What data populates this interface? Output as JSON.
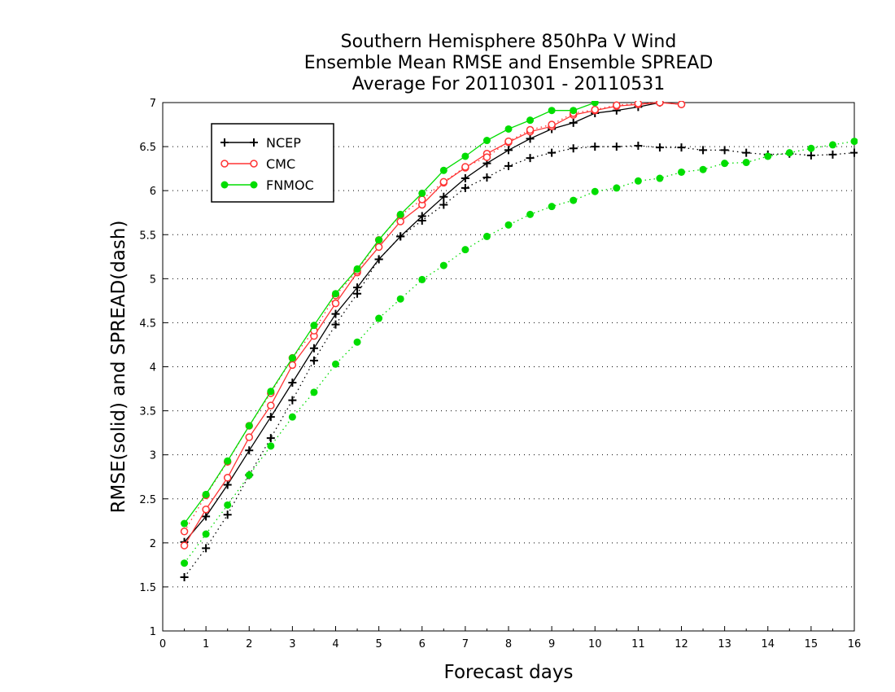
{
  "chart_data": {
    "type": "line",
    "title": [
      "Southern Hemisphere 850hPa V Wind",
      "Ensemble Mean RMSE and Ensemble SPREAD",
      "Average For 20110301 - 20110531"
    ],
    "xlabel": "Forecast days",
    "ylabel": "RMSE(solid) and SPREAD(dash)",
    "xlim": [
      0,
      16
    ],
    "ylim": [
      1,
      7
    ],
    "x_ticks": [
      "0",
      "1",
      "2",
      "3",
      "4",
      "5",
      "6",
      "7",
      "8",
      "9",
      "10",
      "11",
      "12",
      "13",
      "14",
      "15",
      "16"
    ],
    "y_ticks": [
      "1",
      "1.5",
      "2",
      "2.5",
      "3",
      "3.5",
      "4",
      "4.5",
      "5",
      "5.5",
      "6",
      "6.5",
      "7"
    ],
    "grid": "horizontal dotted",
    "legend_position": "top-left",
    "series": [
      {
        "name": "NCEP",
        "color": "#000000",
        "marker": "plus",
        "style": "solid",
        "x": [
          0.5,
          1,
          1.5,
          2,
          2.5,
          3,
          3.5,
          4,
          4.5,
          5,
          5.5,
          6,
          6.5,
          7,
          7.5,
          8,
          8.5,
          9,
          9.5,
          10,
          10.5,
          11,
          11.5
        ],
        "values": [
          2.01,
          2.3,
          2.66,
          3.05,
          3.43,
          3.82,
          4.21,
          4.6,
          4.9,
          5.22,
          5.48,
          5.71,
          5.93,
          6.14,
          6.31,
          6.46,
          6.59,
          6.7,
          6.77,
          6.88,
          6.91,
          6.95,
          7.0
        ]
      },
      {
        "name": "NCEP",
        "color": "#000000",
        "marker": "plus",
        "style": "dotted",
        "legend": false,
        "x": [
          0.5,
          1,
          1.5,
          2,
          2.5,
          3,
          3.5,
          4,
          4.5,
          5,
          5.5,
          6,
          6.5,
          7,
          7.5,
          8,
          8.5,
          9,
          9.5,
          10,
          10.5,
          11,
          11.5,
          12,
          12.5,
          13,
          13.5,
          14,
          14.5,
          15,
          15.5,
          16
        ],
        "values": [
          1.61,
          1.94,
          2.32,
          2.77,
          3.19,
          3.62,
          4.07,
          4.48,
          4.83,
          5.22,
          5.48,
          5.66,
          5.84,
          6.03,
          6.15,
          6.28,
          6.37,
          6.43,
          6.48,
          6.5,
          6.5,
          6.51,
          6.49,
          6.49,
          6.46,
          6.46,
          6.43,
          6.41,
          6.42,
          6.4,
          6.41,
          6.43
        ]
      },
      {
        "name": "CMC",
        "color": "#ff3333",
        "marker": "circle-open",
        "style": "solid",
        "x": [
          0.5,
          1,
          1.5,
          2,
          2.5,
          3,
          3.5,
          4,
          4.5,
          5,
          5.5,
          6,
          6.5,
          7,
          7.5,
          8,
          8.5,
          9,
          9.5,
          10,
          10.5,
          11,
          11.5,
          12
        ],
        "values": [
          1.97,
          2.38,
          2.74,
          3.2,
          3.56,
          4.02,
          4.35,
          4.72,
          5.07,
          5.36,
          5.65,
          5.84,
          6.09,
          6.26,
          6.42,
          6.55,
          6.67,
          6.73,
          6.86,
          6.91,
          6.96,
          6.98,
          7.0,
          6.98
        ]
      },
      {
        "name": "CMC",
        "color": "#ff3333",
        "marker": "circle-open",
        "style": "dotted",
        "legend": false,
        "x": [
          0.5,
          1,
          1.5,
          2,
          2.5,
          3,
          3.5,
          4,
          4.5,
          5,
          5.5,
          6,
          6.5,
          7,
          7.5,
          8,
          8.5,
          9,
          9.5,
          10,
          10.5,
          11,
          11.5,
          12
        ],
        "values": [
          2.13,
          2.54,
          2.92,
          3.33,
          3.7,
          4.1,
          4.41,
          4.81,
          5.09,
          5.44,
          5.72,
          5.9,
          6.1,
          6.27,
          6.38,
          6.56,
          6.69,
          6.75,
          6.88,
          6.92,
          6.97,
          6.99,
          7.0,
          6.98
        ]
      },
      {
        "name": "FNMOC",
        "color": "#00dd00",
        "marker": "circle-filled",
        "style": "solid",
        "x": [
          0.5,
          1,
          1.5,
          2,
          2.5,
          3,
          3.5,
          4,
          4.5,
          5,
          5.5,
          6,
          6.5,
          7,
          7.5,
          8,
          8.5,
          9,
          9.5,
          10
        ],
        "values": [
          2.22,
          2.55,
          2.93,
          3.33,
          3.72,
          4.1,
          4.47,
          4.83,
          5.11,
          5.44,
          5.73,
          5.97,
          6.23,
          6.39,
          6.57,
          6.7,
          6.8,
          6.91,
          6.91,
          7.0
        ]
      },
      {
        "name": "FNMOC",
        "color": "#00dd00",
        "marker": "circle-filled",
        "style": "dotted",
        "legend": false,
        "x": [
          0.5,
          1,
          1.5,
          2,
          2.5,
          3,
          3.5,
          4,
          4.5,
          5,
          5.5,
          6,
          6.5,
          7,
          7.5,
          8,
          8.5,
          9,
          9.5,
          10,
          10.5,
          11,
          11.5,
          12,
          12.5,
          13,
          13.5,
          14,
          14.5,
          15,
          15.5,
          16
        ],
        "values": [
          1.77,
          2.1,
          2.43,
          2.77,
          3.1,
          3.43,
          3.71,
          4.03,
          4.28,
          4.55,
          4.77,
          4.99,
          5.15,
          5.33,
          5.48,
          5.61,
          5.73,
          5.82,
          5.89,
          5.99,
          6.03,
          6.11,
          6.14,
          6.21,
          6.24,
          6.31,
          6.32,
          6.39,
          6.43,
          6.48,
          6.52,
          6.56
        ]
      }
    ]
  }
}
